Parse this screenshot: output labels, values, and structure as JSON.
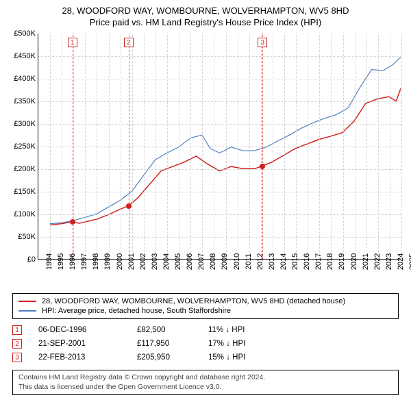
{
  "title": "28, WOODFORD WAY, WOMBOURNE, WOLVERHAMPTON, WV5 8HD",
  "subtitle": "Price paid vs. HM Land Registry's House Price Index (HPI)",
  "chart": {
    "type": "line",
    "background_color": "#ffffff",
    "grid_color": "#cccccc",
    "x_years": [
      1994,
      1995,
      1996,
      1997,
      1998,
      1999,
      2000,
      2001,
      2002,
      2003,
      2004,
      2005,
      2006,
      2007,
      2008,
      2009,
      2010,
      2011,
      2012,
      2013,
      2014,
      2015,
      2016,
      2017,
      2018,
      2019,
      2020,
      2021,
      2022,
      2023,
      2024,
      2025
    ],
    "xlim": [
      1994,
      2025
    ],
    "ylim": [
      0,
      500000
    ],
    "ytick_step": 50000,
    "ytick_labels": [
      "£0",
      "£50K",
      "£100K",
      "£150K",
      "£200K",
      "£250K",
      "£300K",
      "£350K",
      "£400K",
      "£450K",
      "£500K"
    ],
    "label_fontsize": 11,
    "series": [
      {
        "name": "property",
        "color": "#d02020",
        "line_width": 1.5,
        "points": [
          [
            1995.0,
            75000
          ],
          [
            1996.0,
            78000
          ],
          [
            1996.93,
            82500
          ],
          [
            1997.5,
            79000
          ],
          [
            1998.0,
            82000
          ],
          [
            1999.0,
            88000
          ],
          [
            2000.0,
            98000
          ],
          [
            2001.0,
            110000
          ],
          [
            2001.72,
            117950
          ],
          [
            2002.5,
            135000
          ],
          [
            2003.5,
            165000
          ],
          [
            2004.5,
            195000
          ],
          [
            2005.5,
            205000
          ],
          [
            2006.5,
            215000
          ],
          [
            2007.5,
            228000
          ],
          [
            2008.5,
            210000
          ],
          [
            2009.5,
            195000
          ],
          [
            2010.5,
            205000
          ],
          [
            2011.5,
            200000
          ],
          [
            2012.5,
            200000
          ],
          [
            2013.14,
            205950
          ],
          [
            2014.0,
            215000
          ],
          [
            2015.0,
            230000
          ],
          [
            2016.0,
            245000
          ],
          [
            2017.0,
            255000
          ],
          [
            2018.0,
            265000
          ],
          [
            2019.0,
            272000
          ],
          [
            2020.0,
            280000
          ],
          [
            2021.0,
            305000
          ],
          [
            2022.0,
            345000
          ],
          [
            2023.0,
            355000
          ],
          [
            2024.0,
            360000
          ],
          [
            2024.6,
            350000
          ],
          [
            2025.0,
            378000
          ]
        ]
      },
      {
        "name": "hpi",
        "color": "#5080c0",
        "line_width": 1.2,
        "points": [
          [
            1995.0,
            78000
          ],
          [
            1996.0,
            80000
          ],
          [
            1997.0,
            85000
          ],
          [
            1998.0,
            92000
          ],
          [
            1999.0,
            100000
          ],
          [
            2000.0,
            115000
          ],
          [
            2001.0,
            130000
          ],
          [
            2002.0,
            150000
          ],
          [
            2003.0,
            185000
          ],
          [
            2004.0,
            220000
          ],
          [
            2005.0,
            235000
          ],
          [
            2006.0,
            248000
          ],
          [
            2007.0,
            268000
          ],
          [
            2008.0,
            275000
          ],
          [
            2008.7,
            245000
          ],
          [
            2009.5,
            235000
          ],
          [
            2010.5,
            248000
          ],
          [
            2011.5,
            240000
          ],
          [
            2012.5,
            240000
          ],
          [
            2013.5,
            248000
          ],
          [
            2014.5,
            262000
          ],
          [
            2015.5,
            275000
          ],
          [
            2016.5,
            290000
          ],
          [
            2017.5,
            302000
          ],
          [
            2018.5,
            312000
          ],
          [
            2019.5,
            320000
          ],
          [
            2020.5,
            335000
          ],
          [
            2021.5,
            380000
          ],
          [
            2022.5,
            420000
          ],
          [
            2023.5,
            418000
          ],
          [
            2024.3,
            430000
          ],
          [
            2025.0,
            448000
          ]
        ]
      }
    ],
    "markers": [
      {
        "num": "1",
        "x_year": 1996.93,
        "y_value": 82500
      },
      {
        "num": "2",
        "x_year": 2001.72,
        "y_value": 117950
      },
      {
        "num": "3",
        "x_year": 2013.14,
        "y_value": 205950
      }
    ]
  },
  "legend": [
    {
      "color": "#d02020",
      "label": "28, WOODFORD WAY, WOMBOURNE, WOLVERHAMPTON, WV5 8HD (detached house)"
    },
    {
      "color": "#5080c0",
      "label": "HPI: Average price, detached house, South Staffordshire"
    }
  ],
  "sales": [
    {
      "num": "1",
      "date": "06-DEC-1996",
      "price": "£82,500",
      "diff": "11% ↓ HPI"
    },
    {
      "num": "2",
      "date": "21-SEP-2001",
      "price": "£117,950",
      "diff": "17% ↓ HPI"
    },
    {
      "num": "3",
      "date": "22-FEB-2013",
      "price": "£205,950",
      "diff": "15% ↓ HPI"
    }
  ],
  "footnote": {
    "line1": "Contains HM Land Registry data © Crown copyright and database right 2024.",
    "line2": "This data is licensed under the Open Government Licence v3.0."
  }
}
